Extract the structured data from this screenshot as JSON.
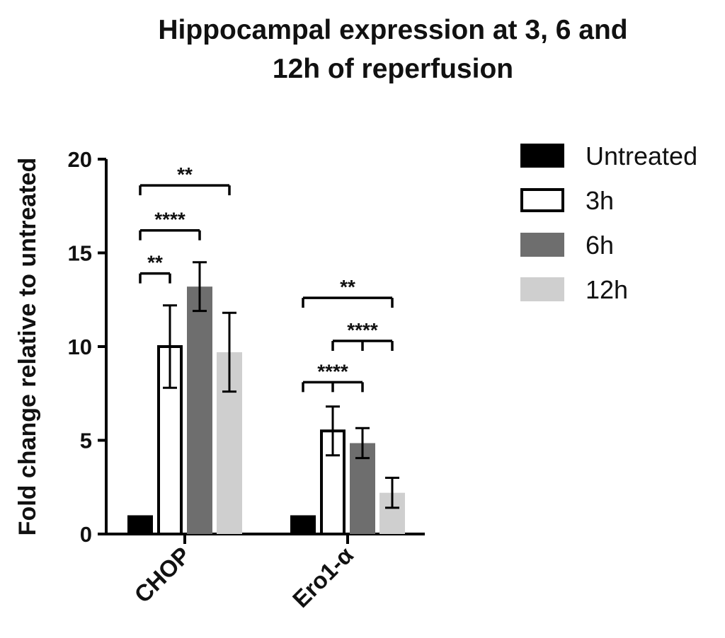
{
  "chart_data": {
    "type": "bar",
    "title": "Hippocampal expression at 3, 6 and 12h of reperfusion",
    "title_lines": [
      "Hippocampal expression at 3, 6 and",
      "12h of reperfusion"
    ],
    "ylabel": "Fold change relative to untreated",
    "xlabel": "",
    "ylim": [
      0,
      20
    ],
    "yticks": [
      0,
      5,
      10,
      15,
      20
    ],
    "categories": [
      "CHOP",
      "Ero1-α"
    ],
    "legend_position": "right",
    "series": [
      {
        "name": "Untreated",
        "color": "#000000",
        "style": "filled",
        "values": [
          1.0,
          1.0
        ],
        "errors": [
          0,
          0
        ]
      },
      {
        "name": "3h",
        "color": "#000000",
        "style": "outline",
        "values": [
          10.0,
          5.5
        ],
        "errors": [
          2.2,
          1.3
        ]
      },
      {
        "name": "6h",
        "color": "#6e6e6e",
        "style": "filled",
        "values": [
          13.2,
          4.85
        ],
        "errors": [
          1.3,
          0.8
        ]
      },
      {
        "name": "12h",
        "color": "#cfcfcf",
        "style": "filled",
        "values": [
          9.7,
          2.2
        ],
        "errors": [
          2.1,
          0.8
        ]
      }
    ],
    "significance": [
      {
        "category": 0,
        "from": 0,
        "to": [
          1
        ],
        "label": "**",
        "y": 13.9
      },
      {
        "category": 0,
        "from": 0,
        "to": [
          2
        ],
        "label": "****",
        "y": 16.2
      },
      {
        "category": 0,
        "from": 0,
        "to": [
          3
        ],
        "label": "**",
        "y": 18.6
      },
      {
        "category": 1,
        "from": 0,
        "to": [
          1,
          2
        ],
        "label": "****",
        "y": 8.1
      },
      {
        "category": 1,
        "from": 1,
        "to": [
          2,
          3
        ],
        "label": "****",
        "y": 10.3
      },
      {
        "category": 1,
        "from": 0,
        "to": [
          3
        ],
        "label": "**",
        "y": 12.6
      }
    ]
  }
}
